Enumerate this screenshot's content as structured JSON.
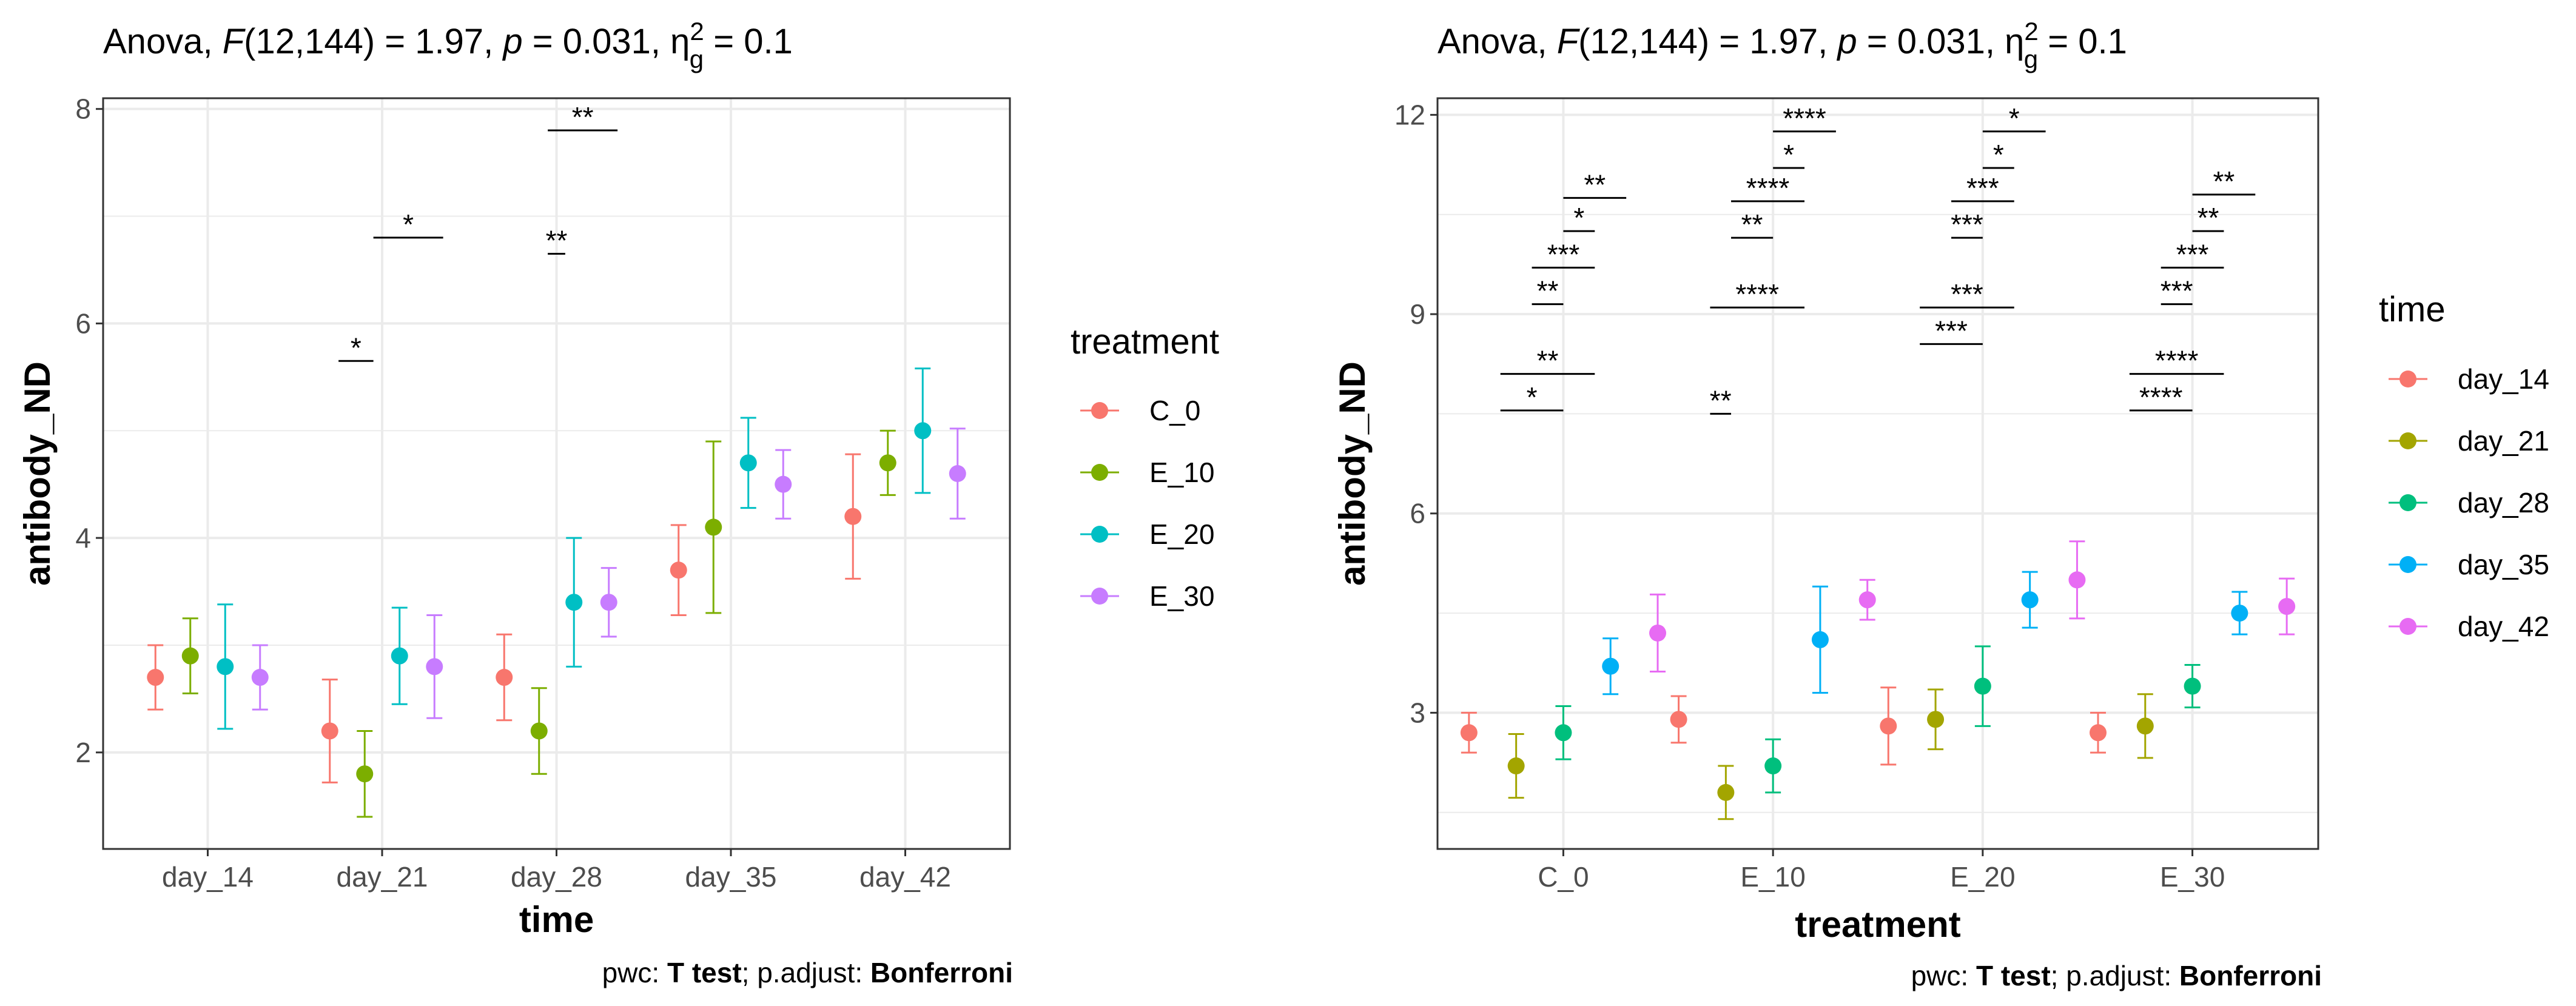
{
  "chart_data": [
    {
      "type": "scatter",
      "subtitle": {
        "prefix": "Anova, ",
        "stat_symbol": "F",
        "stat_args": "(12,144) = 1.97, ",
        "p_symbol": "p",
        "p_value": " = 0.031, ",
        "effect_symbol": "η",
        "effect_sub": "g",
        "effect_sup": "2",
        "effect_value": " = 0.1"
      },
      "xlabel": "time",
      "ylabel": "antibody_ND",
      "categories": [
        "day_14",
        "day_21",
        "day_28",
        "day_35",
        "day_42"
      ],
      "ylim": [
        1.1,
        8.1
      ],
      "yticks": [
        2,
        4,
        6,
        8
      ],
      "ytick_labels": [
        "2",
        "4",
        "6",
        "8"
      ],
      "legend_title": "treatment",
      "series": [
        {
          "name": "C_0",
          "color": "#F8766D",
          "values": [
            2.7,
            2.2,
            2.7,
            3.7,
            4.2
          ],
          "lower": [
            2.4,
            1.72,
            2.3,
            3.28,
            3.62
          ],
          "upper": [
            3.0,
            2.68,
            3.1,
            4.12,
            4.78
          ]
        },
        {
          "name": "E_10",
          "color": "#7CAE00",
          "values": [
            2.9,
            1.8,
            2.2,
            4.1,
            4.7
          ],
          "lower": [
            2.55,
            1.4,
            1.8,
            3.3,
            4.4
          ],
          "upper": [
            3.25,
            2.2,
            2.6,
            4.9,
            5.0
          ]
        },
        {
          "name": "E_20",
          "color": "#00BFC4",
          "values": [
            2.8,
            2.9,
            3.4,
            4.7,
            5.0
          ],
          "lower": [
            2.22,
            2.45,
            2.8,
            4.28,
            4.42
          ],
          "upper": [
            3.38,
            3.35,
            4.0,
            5.12,
            5.58
          ]
        },
        {
          "name": "E_30",
          "color": "#C77CFF",
          "values": [
            2.7,
            2.8,
            3.4,
            4.5,
            4.6
          ],
          "lower": [
            2.4,
            2.32,
            3.08,
            4.18,
            4.18
          ],
          "upper": [
            3.0,
            3.28,
            3.72,
            4.82,
            5.02
          ]
        }
      ],
      "significance": [
        {
          "x_from": 1.75,
          "x_to": 1.95,
          "y": 5.65,
          "label": "*"
        },
        {
          "x_from": 1.95,
          "x_to": 2.35,
          "y": 6.8,
          "label": "*"
        },
        {
          "x_from": 2.95,
          "x_to": 3.05,
          "y": 6.65,
          "label": "**"
        },
        {
          "x_from": 2.95,
          "x_to": 3.35,
          "y": 7.8,
          "label": "**"
        }
      ],
      "caption": {
        "prefix": "pwc: ",
        "test": "T test",
        "middle": "; p.adjust: ",
        "method": "Bonferroni"
      }
    },
    {
      "type": "scatter",
      "subtitle": {
        "prefix": "Anova, ",
        "stat_symbol": "F",
        "stat_args": "(12,144) = 1.97, ",
        "p_symbol": "p",
        "p_value": " = 0.031, ",
        "effect_symbol": "η",
        "effect_sub": "g",
        "effect_sup": "2",
        "effect_value": " = 0.1"
      },
      "xlabel": "treatment",
      "ylabel": "antibody_ND",
      "categories": [
        "C_0",
        "E_10",
        "E_20",
        "E_30"
      ],
      "ylim": [
        0.95,
        12.25
      ],
      "yticks": [
        3,
        6,
        9,
        12
      ],
      "ytick_labels": [
        "3",
        "6",
        "9",
        "12"
      ],
      "legend_title": "time",
      "series": [
        {
          "name": "day_14",
          "color": "#F8766D",
          "values": [
            2.7,
            2.9,
            2.8,
            2.7
          ],
          "lower": [
            2.4,
            2.55,
            2.22,
            2.4
          ],
          "upper": [
            3.0,
            3.25,
            3.38,
            3.0
          ]
        },
        {
          "name": "day_21",
          "color": "#A3A500",
          "values": [
            2.2,
            1.8,
            2.9,
            2.8
          ],
          "lower": [
            1.72,
            1.4,
            2.45,
            2.32
          ],
          "upper": [
            2.68,
            2.2,
            3.35,
            3.28
          ]
        },
        {
          "name": "day_28",
          "color": "#00BF7D",
          "values": [
            2.7,
            2.2,
            3.4,
            3.4
          ],
          "lower": [
            2.3,
            1.8,
            2.8,
            3.08
          ],
          "upper": [
            3.1,
            2.6,
            4.0,
            3.72
          ]
        },
        {
          "name": "day_35",
          "color": "#00B0F6",
          "values": [
            3.7,
            4.1,
            4.7,
            4.5
          ],
          "lower": [
            3.28,
            3.3,
            4.28,
            4.18
          ],
          "upper": [
            4.12,
            4.9,
            5.12,
            4.82
          ]
        },
        {
          "name": "day_42",
          "color": "#E76BF3",
          "values": [
            4.2,
            4.7,
            5.0,
            4.6
          ],
          "lower": [
            3.62,
            4.4,
            4.42,
            4.18
          ],
          "upper": [
            4.78,
            5.0,
            5.58,
            5.02
          ]
        }
      ],
      "significance": [
        {
          "x_from": 0.7,
          "x_to": 1.0,
          "y": 7.55,
          "label": "*"
        },
        {
          "x_from": 0.7,
          "x_to": 1.15,
          "y": 8.1,
          "label": "**"
        },
        {
          "x_from": 0.85,
          "x_to": 1.0,
          "y": 9.15,
          "label": "**"
        },
        {
          "x_from": 0.85,
          "x_to": 1.15,
          "y": 9.7,
          "label": "***"
        },
        {
          "x_from": 1.0,
          "x_to": 1.15,
          "y": 10.25,
          "label": "*"
        },
        {
          "x_from": 1.0,
          "x_to": 1.3,
          "y": 10.75,
          "label": "**"
        },
        {
          "x_from": 1.7,
          "x_to": 1.8,
          "y": 7.5,
          "label": "**"
        },
        {
          "x_from": 1.7,
          "x_to": 2.15,
          "y": 9.1,
          "label": "****"
        },
        {
          "x_from": 1.8,
          "x_to": 2.0,
          "y": 10.15,
          "label": "**"
        },
        {
          "x_from": 1.8,
          "x_to": 2.15,
          "y": 10.7,
          "label": "****"
        },
        {
          "x_from": 2.0,
          "x_to": 2.15,
          "y": 11.2,
          "label": "*"
        },
        {
          "x_from": 2.0,
          "x_to": 2.3,
          "y": 11.75,
          "label": "****"
        },
        {
          "x_from": 2.7,
          "x_to": 3.0,
          "y": 8.55,
          "label": "***"
        },
        {
          "x_from": 2.7,
          "x_to": 3.15,
          "y": 9.1,
          "label": "***"
        },
        {
          "x_from": 2.85,
          "x_to": 3.0,
          "y": 10.15,
          "label": "***"
        },
        {
          "x_from": 2.85,
          "x_to": 3.15,
          "y": 10.7,
          "label": "***"
        },
        {
          "x_from": 3.0,
          "x_to": 3.15,
          "y": 11.2,
          "label": "*"
        },
        {
          "x_from": 3.0,
          "x_to": 3.3,
          "y": 11.75,
          "label": "*"
        },
        {
          "x_from": 3.7,
          "x_to": 4.0,
          "y": 7.55,
          "label": "****"
        },
        {
          "x_from": 3.7,
          "x_to": 4.15,
          "y": 8.1,
          "label": "****"
        },
        {
          "x_from": 3.85,
          "x_to": 4.0,
          "y": 9.15,
          "label": "***"
        },
        {
          "x_from": 3.85,
          "x_to": 4.15,
          "y": 9.7,
          "label": "***"
        },
        {
          "x_from": 4.0,
          "x_to": 4.15,
          "y": 10.25,
          "label": "**"
        },
        {
          "x_from": 4.0,
          "x_to": 4.3,
          "y": 10.8,
          "label": "**"
        }
      ],
      "caption": {
        "prefix": "pwc: ",
        "test": "T test",
        "middle": "; p.adjust: ",
        "method": "Bonferroni"
      }
    }
  ]
}
